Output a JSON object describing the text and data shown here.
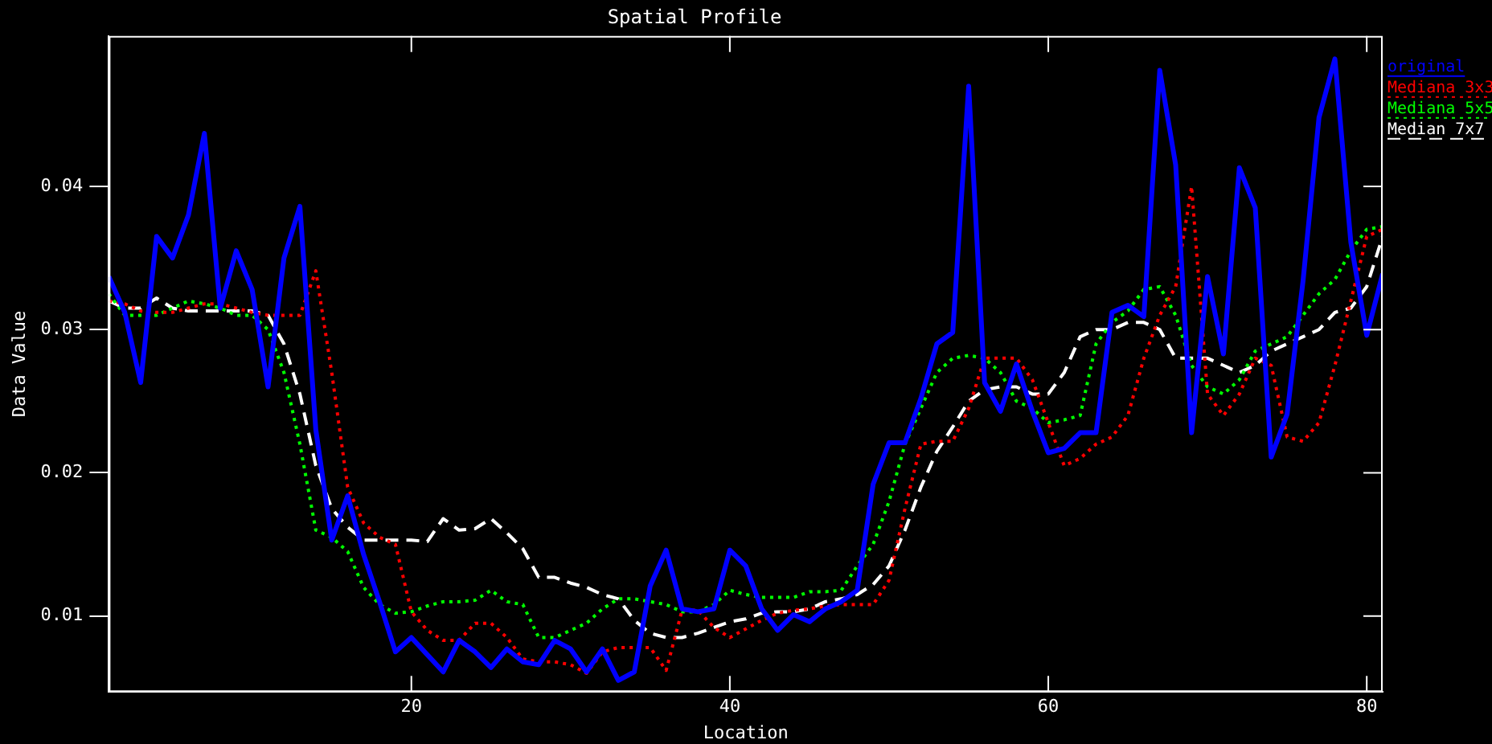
{
  "chart_data": {
    "type": "line",
    "title": "Spatial Profile",
    "xlabel": "Location",
    "ylabel": "Data Value",
    "x": [
      1,
      2,
      3,
      4,
      5,
      6,
      7,
      8,
      9,
      10,
      11,
      12,
      13,
      14,
      15,
      16,
      17,
      18,
      19,
      20,
      21,
      22,
      23,
      24,
      25,
      26,
      27,
      28,
      29,
      30,
      31,
      32,
      33,
      34,
      35,
      36,
      37,
      38,
      39,
      40,
      41,
      42,
      43,
      44,
      45,
      46,
      47,
      48,
      49,
      50,
      51,
      52,
      53,
      54,
      55,
      56,
      57,
      58,
      59,
      60,
      61,
      62,
      63,
      64,
      65,
      66,
      67,
      68,
      69,
      70,
      71,
      72,
      73,
      74,
      75,
      76,
      77,
      78,
      79,
      80,
      81
    ],
    "xlim": [
      1,
      81
    ],
    "xticks": [
      20,
      40,
      60,
      80
    ],
    "ylim": [
      0.0047,
      0.0505
    ],
    "yticks": [
      0.01,
      0.02,
      0.03,
      0.04
    ],
    "grid": false,
    "legend": "top right",
    "marker": "none",
    "series": [
      {
        "name": "original",
        "color": "#0000ff",
        "line_style": "solid",
        "values": [
          0.0337,
          0.0312,
          0.0263,
          0.0365,
          0.035,
          0.038,
          0.0437,
          0.0315,
          0.0355,
          0.0328,
          0.026,
          0.035,
          0.0386,
          0.023,
          0.0153,
          0.0184,
          0.0143,
          0.011,
          0.0075,
          0.0085,
          0.0073,
          0.0061,
          0.0083,
          0.0075,
          0.0064,
          0.0077,
          0.0068,
          0.0066,
          0.0083,
          0.0077,
          0.0061,
          0.0077,
          0.0055,
          0.0061,
          0.0121,
          0.0146,
          0.0105,
          0.0103,
          0.0105,
          0.0146,
          0.0135,
          0.0105,
          0.009,
          0.0101,
          0.0096,
          0.0105,
          0.011,
          0.0118,
          0.0192,
          0.0221,
          0.0221,
          0.0252,
          0.029,
          0.0298,
          0.047,
          0.0263,
          0.0243,
          0.0276,
          0.0243,
          0.0214,
          0.0217,
          0.0228,
          0.0228,
          0.0312,
          0.0317,
          0.0309,
          0.0481,
          0.0415,
          0.0228,
          0.0337,
          0.0283,
          0.0413,
          0.0385,
          0.0211,
          0.0241,
          0.0334,
          0.0448,
          0.0489,
          0.0361,
          0.0296,
          0.0339
        ]
      },
      {
        "name": "Mediana 3x3",
        "color": "#ff0000",
        "line_style": "dotted",
        "values": [
          0.032,
          0.0318,
          0.0313,
          0.0312,
          0.0312,
          0.0315,
          0.0318,
          0.0318,
          0.0315,
          0.0312,
          0.031,
          0.031,
          0.031,
          0.0341,
          0.027,
          0.019,
          0.0165,
          0.0155,
          0.015,
          0.0103,
          0.009,
          0.0083,
          0.0083,
          0.0095,
          0.0095,
          0.0085,
          0.007,
          0.0068,
          0.0068,
          0.0066,
          0.006,
          0.0075,
          0.0078,
          0.0078,
          0.0078,
          0.0062,
          0.0104,
          0.0104,
          0.0092,
          0.0085,
          0.0091,
          0.0097,
          0.0102,
          0.0104,
          0.0105,
          0.0107,
          0.0108,
          0.0108,
          0.0108,
          0.0125,
          0.0175,
          0.022,
          0.0222,
          0.0222,
          0.0245,
          0.028,
          0.028,
          0.028,
          0.0265,
          0.0235,
          0.0205,
          0.021,
          0.022,
          0.0225,
          0.024,
          0.028,
          0.031,
          0.033,
          0.04,
          0.0255,
          0.024,
          0.0255,
          0.028,
          0.0275,
          0.0225,
          0.0222,
          0.0235,
          0.0275,
          0.032,
          0.0365,
          0.037
        ]
      },
      {
        "name": "Mediana 5x5",
        "color": "#00ff00",
        "line_style": "dotted",
        "values": [
          0.0325,
          0.031,
          0.031,
          0.031,
          0.0315,
          0.032,
          0.0318,
          0.0315,
          0.031,
          0.031,
          0.03,
          0.027,
          0.022,
          0.016,
          0.0155,
          0.0145,
          0.012,
          0.0108,
          0.0102,
          0.0103,
          0.0107,
          0.011,
          0.011,
          0.0111,
          0.0118,
          0.011,
          0.0108,
          0.0085,
          0.0085,
          0.009,
          0.0095,
          0.0105,
          0.0112,
          0.0112,
          0.011,
          0.0108,
          0.0103,
          0.0103,
          0.0108,
          0.0118,
          0.0115,
          0.0113,
          0.0113,
          0.0113,
          0.0117,
          0.0117,
          0.0118,
          0.0135,
          0.015,
          0.018,
          0.022,
          0.0245,
          0.027,
          0.028,
          0.0282,
          0.028,
          0.027,
          0.025,
          0.0245,
          0.0235,
          0.0237,
          0.024,
          0.029,
          0.0305,
          0.0313,
          0.0328,
          0.033,
          0.031,
          0.0275,
          0.026,
          0.0255,
          0.0265,
          0.0285,
          0.029,
          0.0295,
          0.031,
          0.0325,
          0.0335,
          0.0355,
          0.037,
          0.0372
        ]
      },
      {
        "name": "Median 7x7",
        "color": "#ffffff",
        "line_style": "dashed",
        "values": [
          0.032,
          0.0315,
          0.0315,
          0.0322,
          0.0315,
          0.0313,
          0.0313,
          0.0313,
          0.0313,
          0.0313,
          0.031,
          0.029,
          0.0255,
          0.0205,
          0.0175,
          0.0162,
          0.0153,
          0.0153,
          0.0153,
          0.0153,
          0.0152,
          0.0168,
          0.016,
          0.0161,
          0.0168,
          0.0158,
          0.0147,
          0.0127,
          0.0127,
          0.0123,
          0.012,
          0.0115,
          0.0112,
          0.0097,
          0.0088,
          0.0085,
          0.0085,
          0.0088,
          0.0092,
          0.0096,
          0.0098,
          0.0102,
          0.0103,
          0.0103,
          0.0105,
          0.011,
          0.0112,
          0.0115,
          0.0122,
          0.0135,
          0.016,
          0.019,
          0.0215,
          0.0232,
          0.025,
          0.0258,
          0.026,
          0.026,
          0.0255,
          0.0255,
          0.027,
          0.0295,
          0.03,
          0.03,
          0.0305,
          0.0305,
          0.03,
          0.028,
          0.028,
          0.028,
          0.0275,
          0.027,
          0.0275,
          0.0285,
          0.029,
          0.0295,
          0.03,
          0.0312,
          0.0315,
          0.033,
          0.0365
        ]
      }
    ]
  }
}
